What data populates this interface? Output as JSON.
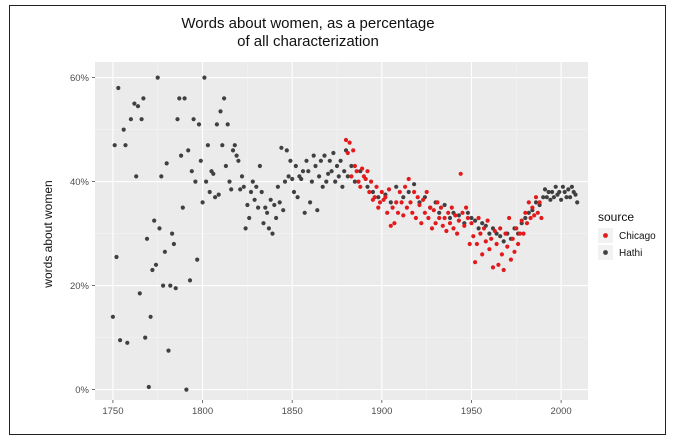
{
  "chart_data": {
    "type": "scatter",
    "title_lines": [
      "Words about women, as a percentage",
      "of all characterization"
    ],
    "xlabel": "",
    "ylabel": "words about women",
    "xlim": [
      1740,
      2015
    ],
    "ylim": [
      -2,
      63
    ],
    "x_ticks": [
      1750,
      1800,
      1850,
      1900,
      1950,
      2000
    ],
    "y_ticks": [
      0,
      20,
      40,
      60
    ],
    "y_tick_labels": [
      "0%",
      "20%",
      "40%",
      "60%"
    ],
    "grid": true,
    "legend": {
      "title": "source",
      "position": "right"
    },
    "series": [
      {
        "name": "Hathi",
        "color": "#404040",
        "points": [
          [
            1750,
            14
          ],
          [
            1751,
            47
          ],
          [
            1752,
            25.5
          ],
          [
            1753,
            58
          ],
          [
            1754,
            9.5
          ],
          [
            1756,
            50
          ],
          [
            1757,
            47
          ],
          [
            1758,
            9
          ],
          [
            1760,
            52
          ],
          [
            1762,
            55
          ],
          [
            1763,
            41
          ],
          [
            1764,
            54.5
          ],
          [
            1765,
            18.5
          ],
          [
            1766,
            52
          ],
          [
            1767,
            56
          ],
          [
            1768,
            10
          ],
          [
            1769,
            29
          ],
          [
            1770,
            0.5
          ],
          [
            1771,
            14
          ],
          [
            1772,
            23
          ],
          [
            1773,
            32.5
          ],
          [
            1774,
            24
          ],
          [
            1775,
            60
          ],
          [
            1776,
            31
          ],
          [
            1777,
            41
          ],
          [
            1778,
            20
          ],
          [
            1779,
            26.5
          ],
          [
            1780,
            43.5
          ],
          [
            1781,
            7.5
          ],
          [
            1782,
            20
          ],
          [
            1783,
            30
          ],
          [
            1784,
            28
          ],
          [
            1785,
            19.5
          ],
          [
            1786,
            52
          ],
          [
            1787,
            56
          ],
          [
            1788,
            45
          ],
          [
            1789,
            35
          ],
          [
            1790,
            56
          ],
          [
            1791,
            0
          ],
          [
            1792,
            46
          ],
          [
            1793,
            21
          ],
          [
            1794,
            42
          ],
          [
            1795,
            52
          ],
          [
            1796,
            40
          ],
          [
            1797,
            25
          ],
          [
            1798,
            51
          ],
          [
            1799,
            44
          ],
          [
            1800,
            36
          ],
          [
            1801,
            60
          ],
          [
            1802,
            40
          ],
          [
            1803,
            47
          ],
          [
            1804,
            38
          ],
          [
            1805,
            42
          ],
          [
            1806,
            41.5
          ],
          [
            1807,
            37
          ],
          [
            1808,
            51
          ],
          [
            1809,
            37.5
          ],
          [
            1810,
            53.5
          ],
          [
            1811,
            47
          ],
          [
            1812,
            56
          ],
          [
            1813,
            43
          ],
          [
            1814,
            51
          ],
          [
            1815,
            40
          ],
          [
            1816,
            38.5
          ],
          [
            1817,
            46
          ],
          [
            1818,
            47
          ],
          [
            1819,
            45
          ],
          [
            1820,
            44
          ],
          [
            1821,
            38.5
          ],
          [
            1822,
            41
          ],
          [
            1823,
            39
          ],
          [
            1824,
            31
          ],
          [
            1825,
            35.5
          ],
          [
            1826,
            33
          ],
          [
            1827,
            38
          ],
          [
            1828,
            40
          ],
          [
            1829,
            36.5
          ],
          [
            1830,
            39
          ],
          [
            1831,
            35
          ],
          [
            1832,
            43
          ],
          [
            1833,
            38
          ],
          [
            1834,
            32
          ],
          [
            1835,
            35
          ],
          [
            1836,
            34
          ],
          [
            1837,
            31
          ],
          [
            1838,
            36.5
          ],
          [
            1839,
            30
          ],
          [
            1840,
            35.5
          ],
          [
            1841,
            33
          ],
          [
            1842,
            39
          ],
          [
            1843,
            36
          ],
          [
            1844,
            46.5
          ],
          [
            1845,
            34.5
          ],
          [
            1846,
            40
          ],
          [
            1847,
            46
          ],
          [
            1848,
            41
          ],
          [
            1849,
            44
          ],
          [
            1850,
            40.5
          ],
          [
            1851,
            38
          ],
          [
            1852,
            43
          ],
          [
            1853,
            37
          ],
          [
            1854,
            41
          ],
          [
            1855,
            40.5
          ],
          [
            1856,
            42
          ],
          [
            1857,
            34
          ],
          [
            1858,
            44
          ],
          [
            1859,
            42
          ],
          [
            1860,
            36
          ],
          [
            1861,
            40
          ],
          [
            1862,
            45
          ],
          [
            1863,
            43
          ],
          [
            1864,
            34.5
          ],
          [
            1865,
            41
          ],
          [
            1866,
            44
          ],
          [
            1867,
            39
          ],
          [
            1868,
            45
          ],
          [
            1869,
            40
          ],
          [
            1870,
            41.5
          ],
          [
            1871,
            44
          ],
          [
            1872,
            42
          ],
          [
            1873,
            45.5
          ],
          [
            1874,
            40
          ],
          [
            1875,
            43
          ],
          [
            1876,
            41
          ],
          [
            1877,
            44
          ],
          [
            1878,
            39
          ],
          [
            1879,
            42
          ],
          [
            1880,
            46
          ],
          [
            1881,
            41
          ],
          [
            1883,
            43
          ],
          [
            1885,
            40
          ],
          [
            1888,
            42
          ],
          [
            1892,
            39
          ],
          [
            1895,
            38
          ],
          [
            1898,
            37
          ],
          [
            1902,
            37.5
          ],
          [
            1905,
            36
          ],
          [
            1908,
            39
          ],
          [
            1912,
            37
          ],
          [
            1915,
            38
          ],
          [
            1918,
            39.5
          ],
          [
            1921,
            36
          ],
          [
            1924,
            37
          ],
          [
            1927,
            35
          ],
          [
            1930,
            36
          ],
          [
            1932,
            34
          ],
          [
            1935,
            35.5
          ],
          [
            1938,
            33
          ],
          [
            1940,
            34
          ],
          [
            1943,
            33.5
          ],
          [
            1946,
            32
          ],
          [
            1948,
            34
          ],
          [
            1950,
            33
          ],
          [
            1952,
            32.5
          ],
          [
            1954,
            31
          ],
          [
            1956,
            32
          ],
          [
            1958,
            31.5
          ],
          [
            1960,
            30
          ],
          [
            1962,
            31
          ],
          [
            1964,
            30
          ],
          [
            1966,
            29.5
          ],
          [
            1968,
            28.5
          ],
          [
            1970,
            30
          ],
          [
            1972,
            29
          ],
          [
            1974,
            31
          ],
          [
            1976,
            30
          ],
          [
            1978,
            32
          ],
          [
            1980,
            33
          ],
          [
            1982,
            34
          ],
          [
            1984,
            34.5
          ],
          [
            1986,
            36
          ],
          [
            1988,
            35.5
          ],
          [
            1990,
            37
          ],
          [
            1991,
            38.5
          ],
          [
            1992,
            37
          ],
          [
            1993,
            38
          ],
          [
            1994,
            36.5
          ],
          [
            1995,
            38
          ],
          [
            1996,
            37
          ],
          [
            1997,
            39
          ],
          [
            1998,
            37.5
          ],
          [
            1999,
            38
          ],
          [
            2000,
            36.5
          ],
          [
            2001,
            39
          ],
          [
            2002,
            38
          ],
          [
            2003,
            37
          ],
          [
            2004,
            38.5
          ],
          [
            2005,
            37
          ],
          [
            2006,
            39
          ],
          [
            2007,
            38
          ],
          [
            2008,
            37.5
          ],
          [
            2009,
            36
          ]
        ]
      },
      {
        "name": "Chicago",
        "color": "#e31a1c",
        "points": [
          [
            1880,
            48
          ],
          [
            1881,
            45.5
          ],
          [
            1882,
            47.5
          ],
          [
            1883,
            41
          ],
          [
            1884,
            46
          ],
          [
            1885,
            43
          ],
          [
            1886,
            42
          ],
          [
            1887,
            40
          ],
          [
            1888,
            39
          ],
          [
            1889,
            42.5
          ],
          [
            1890,
            41
          ],
          [
            1891,
            40.5
          ],
          [
            1892,
            42
          ],
          [
            1893,
            38
          ],
          [
            1894,
            40
          ],
          [
            1895,
            36.5
          ],
          [
            1896,
            37
          ],
          [
            1897,
            39
          ],
          [
            1898,
            35
          ],
          [
            1899,
            36
          ],
          [
            1900,
            38
          ],
          [
            1901,
            36.5
          ],
          [
            1902,
            37
          ],
          [
            1903,
            34
          ],
          [
            1904,
            38.5
          ],
          [
            1905,
            31.5
          ],
          [
            1906,
            35
          ],
          [
            1907,
            32
          ],
          [
            1908,
            36
          ],
          [
            1909,
            34
          ],
          [
            1910,
            38
          ],
          [
            1911,
            36
          ],
          [
            1912,
            33.5
          ],
          [
            1913,
            39
          ],
          [
            1914,
            35
          ],
          [
            1915,
            40.5
          ],
          [
            1916,
            36
          ],
          [
            1917,
            34
          ],
          [
            1918,
            38
          ],
          [
            1919,
            33
          ],
          [
            1920,
            37
          ],
          [
            1921,
            35.5
          ],
          [
            1922,
            32
          ],
          [
            1923,
            36.5
          ],
          [
            1924,
            34
          ],
          [
            1925,
            38
          ],
          [
            1926,
            33
          ],
          [
            1927,
            35
          ],
          [
            1928,
            31
          ],
          [
            1929,
            34.5
          ],
          [
            1930,
            32
          ],
          [
            1931,
            36
          ],
          [
            1932,
            33
          ],
          [
            1933,
            35
          ],
          [
            1934,
            31.5
          ],
          [
            1935,
            33
          ],
          [
            1936,
            30.5
          ],
          [
            1937,
            34
          ],
          [
            1938,
            32
          ],
          [
            1939,
            35
          ],
          [
            1940,
            31
          ],
          [
            1941,
            33.5
          ],
          [
            1942,
            30
          ],
          [
            1943,
            32.5
          ],
          [
            1944,
            41.5
          ],
          [
            1945,
            34
          ],
          [
            1946,
            31.5
          ],
          [
            1947,
            35
          ],
          [
            1948,
            33
          ],
          [
            1949,
            28
          ],
          [
            1950,
            32
          ],
          [
            1951,
            29.5
          ],
          [
            1952,
            24.5
          ],
          [
            1953,
            28
          ],
          [
            1954,
            33
          ],
          [
            1955,
            30
          ],
          [
            1956,
            26
          ],
          [
            1957,
            31
          ],
          [
            1958,
            28.5
          ],
          [
            1959,
            32.5
          ],
          [
            1960,
            27
          ],
          [
            1961,
            29
          ],
          [
            1962,
            23.5
          ],
          [
            1963,
            30.5
          ],
          [
            1964,
            28
          ],
          [
            1965,
            24
          ],
          [
            1966,
            31
          ],
          [
            1967,
            26
          ],
          [
            1968,
            23
          ],
          [
            1969,
            30
          ],
          [
            1970,
            27.5
          ],
          [
            1971,
            33
          ],
          [
            1972,
            25
          ],
          [
            1973,
            29
          ],
          [
            1974,
            26.5
          ],
          [
            1975,
            31
          ],
          [
            1976,
            28
          ],
          [
            1977,
            30
          ],
          [
            1978,
            32.5
          ],
          [
            1979,
            30
          ],
          [
            1980,
            34
          ],
          [
            1981,
            32
          ],
          [
            1982,
            36
          ],
          [
            1983,
            33
          ],
          [
            1984,
            35
          ],
          [
            1985,
            33.5
          ],
          [
            1986,
            37
          ],
          [
            1987,
            34
          ],
          [
            1988,
            36
          ],
          [
            1989,
            33
          ]
        ]
      }
    ]
  }
}
